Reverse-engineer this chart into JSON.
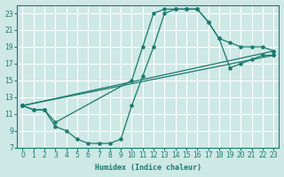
{
  "xlabel": "Humidex (Indice chaleur)",
  "bg_color": "#cde8e5",
  "grid_color": "#ffffff",
  "line_color": "#1a7a6e",
  "xlim": [
    -0.5,
    23.5
  ],
  "ylim": [
    7,
    24
  ],
  "xticks": [
    0,
    1,
    2,
    3,
    4,
    5,
    6,
    7,
    8,
    9,
    10,
    11,
    12,
    13,
    14,
    15,
    16,
    17,
    18,
    19,
    20,
    21,
    22,
    23
  ],
  "yticks": [
    7,
    9,
    11,
    13,
    15,
    17,
    19,
    21,
    23
  ],
  "curve_upper_x": [
    0,
    1,
    2,
    3,
    10,
    11,
    12,
    13,
    14,
    15,
    16,
    17,
    18,
    19,
    20,
    21,
    22,
    23
  ],
  "curve_upper_y": [
    12,
    11.5,
    11.5,
    10,
    15,
    19,
    23,
    23.5,
    23.5,
    23.5,
    23.5,
    22,
    20,
    19.5,
    19,
    19,
    19,
    18.5
  ],
  "curve_lower_x": [
    0,
    1,
    2,
    3,
    4,
    5,
    6,
    7,
    8,
    9,
    10,
    11,
    12,
    13,
    14,
    15,
    16,
    17,
    18,
    19,
    20,
    21,
    22,
    23
  ],
  "curve_lower_y": [
    12,
    11.5,
    11.5,
    9.5,
    9,
    8,
    7.5,
    7.5,
    7.5,
    8,
    12,
    15.5,
    19,
    23,
    23.5,
    23.5,
    23.5,
    22,
    20,
    16.5,
    17,
    17.5,
    18,
    18
  ],
  "line1_x": [
    0,
    23
  ],
  "line1_y": [
    12,
    18.5
  ],
  "line2_x": [
    0,
    23
  ],
  "line2_y": [
    12,
    18
  ]
}
